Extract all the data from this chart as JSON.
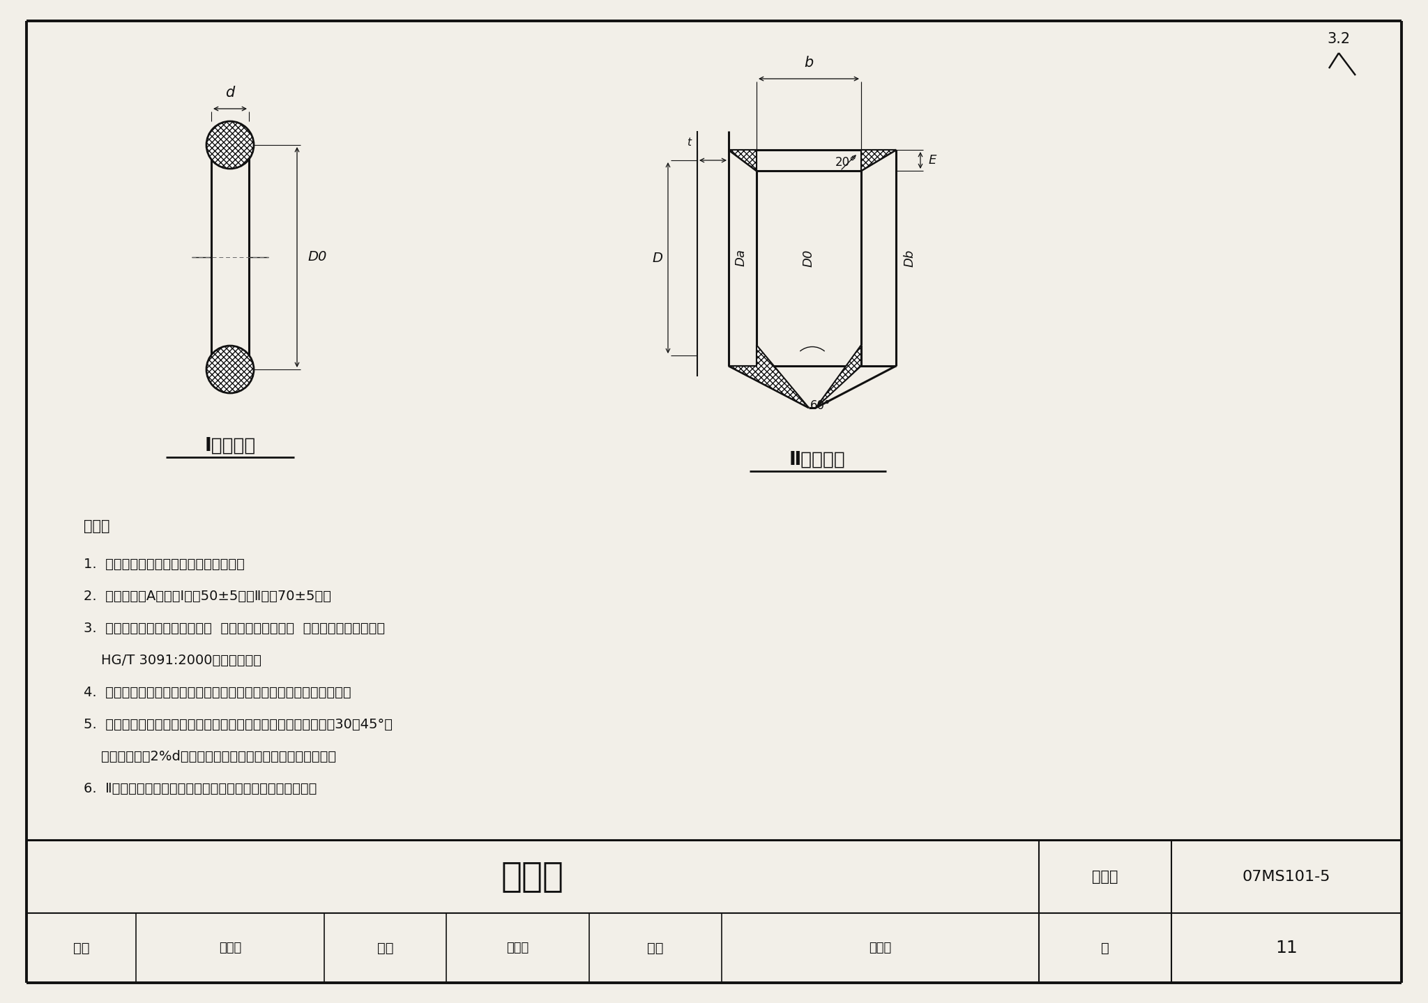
{
  "title": "密封圈",
  "figure_number": "07MS101-5",
  "page_number": "11",
  "roughness": "3.2",
  "type1_label": "Ⅰ型密封圈",
  "type2_label": "Ⅱ型密封圈",
  "notes_title": "说明：",
  "note1": "1.  材料：丁膘橡胶、氯丁橡胶、氟橡胶。",
  "note2": "2.  硬度（邵尔A型）：Ⅰ型：50±5度，Ⅱ型：70±5度。",
  "note3a": "3.  物理性能应符合《橡胶密封件  给排水管及污水管道  接口密封圈材料规范》",
  "note3b": "    HG/T 3091:2000标准的要求。",
  "note4": "4.  密封圈应无气泡，应没有可影响其使用性能的表面缺陷或不平整性。",
  "note5a": "5.  密封圈宜采用模压成型。当大型密封圈需要接头时，接口角度为30～45°，",
  "note5b": "    错边量应小于2%d。接口应进行强度试验，不合格者应重接。",
  "note6": "6.  Ⅱ型密封圈尺寸系根据锡山市管道附件厂提供的资料编制。",
  "review_text": "审核",
  "reviewer": "林海燕",
  "check_text": "校对",
  "checker": "陈春明",
  "design_text": "设计",
  "designer": "欧阳容",
  "atlas_text": "图集号",
  "page_text": "页",
  "bg_color": "#f2efe8",
  "line_color": "#111111",
  "white": "#ffffff"
}
